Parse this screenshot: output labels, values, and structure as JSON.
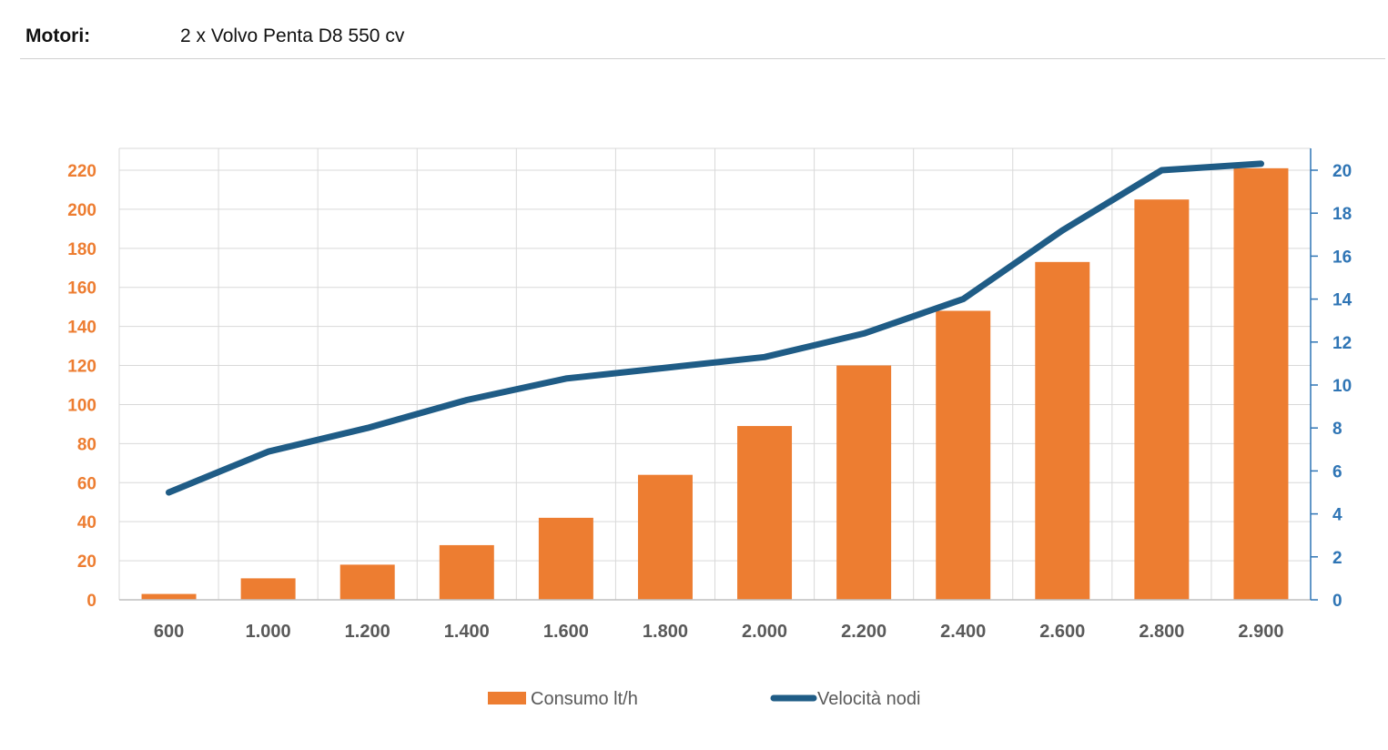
{
  "header": {
    "label": "Motori:",
    "value": "2 x Volvo Penta D8 550 cv"
  },
  "colors": {
    "bar": "#ED7D31",
    "line": "#1F5C86",
    "left_axis": "#ED7D31",
    "right_axis": "#2F75B5",
    "grid": "#D9D9D9"
  },
  "chart_data": {
    "type": "bar",
    "categories": [
      "600",
      "1.000",
      "1.200",
      "1.400",
      "1.600",
      "1.800",
      "2.000",
      "2.200",
      "2.400",
      "2.600",
      "2.800",
      "2.900"
    ],
    "series": [
      {
        "name": "Consumo lt/h",
        "type": "bar",
        "axis": "left",
        "values": [
          3,
          11,
          18,
          28,
          42,
          64,
          89,
          120,
          148,
          173,
          205,
          221
        ]
      },
      {
        "name": "Velocità nodi",
        "type": "line",
        "axis": "right",
        "values": [
          5.0,
          6.9,
          8.0,
          9.3,
          10.3,
          10.8,
          11.3,
          12.4,
          14.0,
          17.2,
          20.0,
          20.3
        ]
      }
    ],
    "y_left": {
      "min": 0,
      "max": 220,
      "step": 20,
      "ticks": [
        "0",
        "20",
        "40",
        "60",
        "80",
        "100",
        "120",
        "140",
        "160",
        "180",
        "200",
        "220"
      ]
    },
    "y_right": {
      "min": 0,
      "max": 20,
      "step": 2,
      "ticks": [
        "0",
        "2",
        "4",
        "6",
        "8",
        "10",
        "12",
        "14",
        "16",
        "18",
        "20"
      ]
    },
    "grid": true,
    "legend": "bottom-center"
  }
}
